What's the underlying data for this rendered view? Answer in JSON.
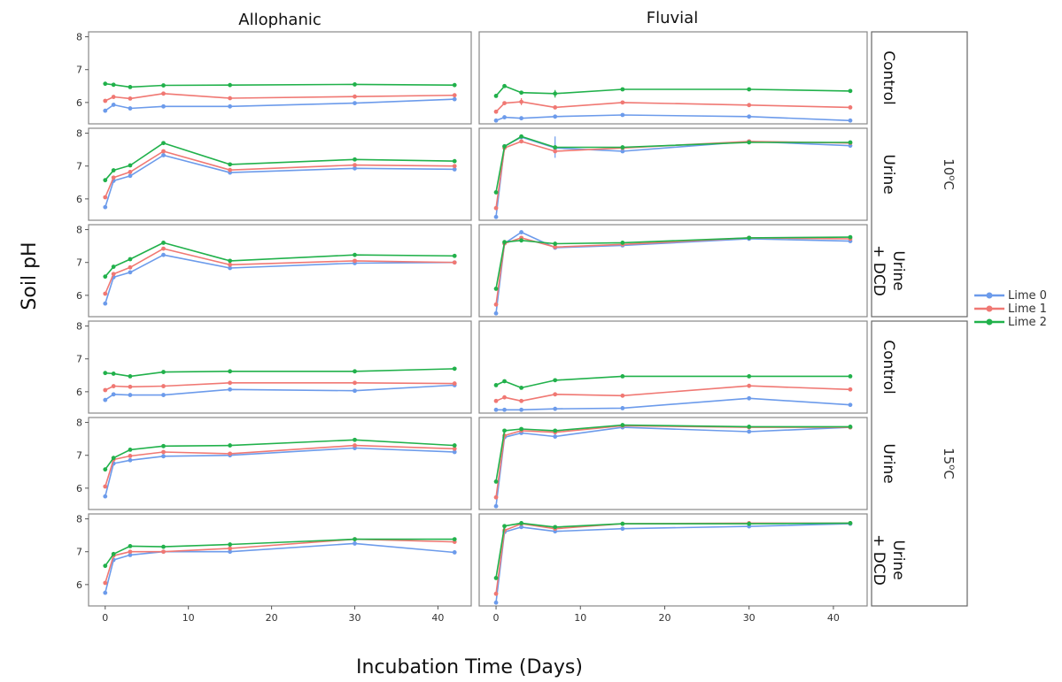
{
  "chart_data": {
    "type": "line",
    "xlabel": "Incubation Time (Days)",
    "ylabel": "Soil pH",
    "x": [
      0,
      1,
      3,
      7,
      15,
      30,
      42
    ],
    "xticks": [
      0,
      10,
      20,
      30,
      40
    ],
    "xlim": [
      -2,
      44
    ],
    "ylim": [
      5.35,
      8.15
    ],
    "yticks": [
      6,
      7,
      8
    ],
    "columns": [
      "Allophanic",
      "Fluvial"
    ],
    "row_labels": [
      "Control",
      "Urine",
      "Urine\n+ DCD",
      "Control",
      "Urine",
      "Urine\n+ DCD"
    ],
    "temperatures": [
      {
        "base": "10",
        "sup": "o",
        "unit": "C"
      },
      {
        "base": "15",
        "sup": "o",
        "unit": "C"
      }
    ],
    "series_styles": [
      {
        "name": "Lime 0",
        "color": "#6C9BEB"
      },
      {
        "name": "Lime 1",
        "color": "#F07873"
      },
      {
        "name": "Lime 2",
        "color": "#21B14B"
      }
    ],
    "panels": [
      {
        "row": 0,
        "col": 0,
        "series": [
          [
            5.75,
            5.93,
            5.82,
            5.88,
            5.88,
            5.98,
            6.1
          ],
          [
            6.05,
            6.17,
            6.12,
            6.27,
            6.13,
            6.18,
            6.22
          ],
          [
            6.57,
            6.54,
            6.47,
            6.52,
            6.53,
            6.55,
            6.53
          ]
        ]
      },
      {
        "row": 0,
        "col": 1,
        "series": [
          [
            5.45,
            5.55,
            5.52,
            5.57,
            5.62,
            5.57,
            5.45
          ],
          [
            5.72,
            5.98,
            6.02,
            5.85,
            6.0,
            5.92,
            5.85
          ],
          [
            6.2,
            6.5,
            6.3,
            6.27,
            6.4,
            6.4,
            6.35
          ]
        ]
      },
      {
        "row": 1,
        "col": 0,
        "series": [
          [
            5.75,
            6.55,
            6.7,
            7.33,
            6.8,
            6.93,
            6.9
          ],
          [
            6.05,
            6.65,
            6.82,
            7.45,
            6.88,
            7.03,
            7.0
          ],
          [
            6.57,
            6.87,
            7.02,
            7.7,
            7.05,
            7.2,
            7.15
          ]
        ]
      },
      {
        "row": 1,
        "col": 1,
        "series": [
          [
            5.45,
            7.6,
            7.88,
            7.55,
            7.45,
            7.75,
            7.62
          ],
          [
            5.72,
            7.55,
            7.75,
            7.45,
            7.55,
            7.75,
            7.7
          ],
          [
            6.2,
            7.6,
            7.9,
            7.57,
            7.57,
            7.72,
            7.72
          ]
        ]
      },
      {
        "row": 2,
        "col": 0,
        "series": [
          [
            5.75,
            6.55,
            6.7,
            7.23,
            6.83,
            6.98,
            7.0
          ],
          [
            6.05,
            6.65,
            6.85,
            7.42,
            6.93,
            7.05,
            7.0
          ],
          [
            6.57,
            6.87,
            7.1,
            7.6,
            7.05,
            7.23,
            7.2
          ]
        ]
      },
      {
        "row": 2,
        "col": 1,
        "series": [
          [
            5.45,
            7.58,
            7.92,
            7.45,
            7.52,
            7.72,
            7.65
          ],
          [
            5.72,
            7.58,
            7.75,
            7.47,
            7.55,
            7.75,
            7.72
          ],
          [
            6.2,
            7.62,
            7.67,
            7.57,
            7.6,
            7.75,
            7.77
          ]
        ]
      },
      {
        "row": 3,
        "col": 0,
        "series": [
          [
            5.75,
            5.92,
            5.9,
            5.9,
            6.07,
            6.03,
            6.2
          ],
          [
            6.05,
            6.17,
            6.15,
            6.17,
            6.27,
            6.27,
            6.25
          ],
          [
            6.57,
            6.55,
            6.47,
            6.6,
            6.62,
            6.62,
            6.7
          ]
        ]
      },
      {
        "row": 3,
        "col": 1,
        "series": [
          [
            5.45,
            5.45,
            5.45,
            5.48,
            5.5,
            5.8,
            5.6
          ],
          [
            5.72,
            5.83,
            5.72,
            5.92,
            5.88,
            6.18,
            6.07
          ],
          [
            6.2,
            6.32,
            6.12,
            6.35,
            6.47,
            6.47,
            6.47
          ]
        ]
      },
      {
        "row": 4,
        "col": 0,
        "series": [
          [
            5.75,
            6.75,
            6.85,
            6.97,
            7.0,
            7.22,
            7.1
          ],
          [
            6.05,
            6.87,
            6.98,
            7.1,
            7.05,
            7.3,
            7.2
          ],
          [
            6.57,
            6.92,
            7.17,
            7.28,
            7.3,
            7.47,
            7.3
          ]
        ]
      },
      {
        "row": 4,
        "col": 1,
        "series": [
          [
            5.45,
            7.55,
            7.68,
            7.57,
            7.85,
            7.72,
            7.85
          ],
          [
            5.72,
            7.6,
            7.75,
            7.7,
            7.9,
            7.85,
            7.85
          ],
          [
            6.2,
            7.75,
            7.8,
            7.75,
            7.92,
            7.87,
            7.87
          ]
        ]
      },
      {
        "row": 5,
        "col": 0,
        "series": [
          [
            5.75,
            6.75,
            6.9,
            7.0,
            7.0,
            7.25,
            6.98
          ],
          [
            6.05,
            6.88,
            7.0,
            7.0,
            7.1,
            7.38,
            7.3
          ],
          [
            6.57,
            6.93,
            7.17,
            7.15,
            7.22,
            7.38,
            7.38
          ]
        ]
      },
      {
        "row": 5,
        "col": 1,
        "series": [
          [
            5.45,
            7.6,
            7.75,
            7.62,
            7.7,
            7.77,
            7.85
          ],
          [
            5.72,
            7.65,
            7.85,
            7.7,
            7.85,
            7.87,
            7.87
          ],
          [
            6.2,
            7.78,
            7.87,
            7.75,
            7.85,
            7.85,
            7.87
          ]
        ]
      }
    ],
    "error_bars": [
      {
        "row": 0,
        "col": 1,
        "series": 1,
        "x": 3,
        "low": 5.92,
        "high": 6.13
      },
      {
        "row": 0,
        "col": 1,
        "series": 2,
        "x": 7,
        "low": 6.15,
        "high": 6.38
      },
      {
        "row": 1,
        "col": 1,
        "series": 0,
        "x": 7,
        "low": 7.25,
        "high": 7.9
      }
    ]
  },
  "legend": {
    "position": "right",
    "items": [
      "Lime 0",
      "Lime 1",
      "Lime 2"
    ]
  },
  "grid": false
}
